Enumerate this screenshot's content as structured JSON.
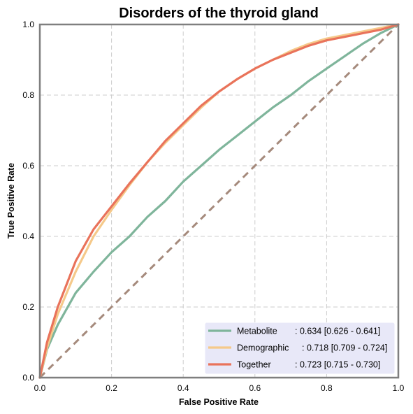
{
  "chart_data": {
    "type": "line",
    "title": "Disorders of the thyroid gland",
    "xlabel": "False Positive Rate",
    "ylabel": "True Positive Rate",
    "xlim": [
      0,
      1
    ],
    "ylim": [
      0,
      1
    ],
    "xticks": [
      "0.0",
      "0.2",
      "0.4",
      "0.6",
      "0.8",
      "1.0"
    ],
    "yticks": [
      "0.0",
      "0.2",
      "0.4",
      "0.6",
      "0.8",
      "1.0"
    ],
    "grid": true,
    "legend_position": "bottom-right",
    "series": [
      {
        "name": "Metabolite",
        "auc_label": ": 0.634 [0.626 - 0.641]",
        "color": "#7fb59b",
        "x": [
          0,
          0.02,
          0.05,
          0.1,
          0.15,
          0.2,
          0.25,
          0.3,
          0.35,
          0.4,
          0.45,
          0.5,
          0.55,
          0.6,
          0.65,
          0.7,
          0.75,
          0.8,
          0.85,
          0.9,
          0.95,
          1.0
        ],
        "y": [
          0,
          0.08,
          0.15,
          0.24,
          0.3,
          0.355,
          0.4,
          0.455,
          0.5,
          0.555,
          0.6,
          0.645,
          0.685,
          0.725,
          0.765,
          0.8,
          0.84,
          0.875,
          0.91,
          0.945,
          0.975,
          1.0
        ]
      },
      {
        "name": "Demographic",
        "auc_label": ": 0.718 [0.709 - 0.724]",
        "color": "#f5c98a",
        "x": [
          0,
          0.02,
          0.05,
          0.1,
          0.15,
          0.2,
          0.25,
          0.3,
          0.35,
          0.4,
          0.45,
          0.5,
          0.55,
          0.6,
          0.65,
          0.7,
          0.75,
          0.8,
          0.85,
          0.9,
          0.95,
          1.0
        ],
        "y": [
          0,
          0.085,
          0.18,
          0.3,
          0.4,
          0.475,
          0.545,
          0.61,
          0.665,
          0.715,
          0.765,
          0.81,
          0.845,
          0.875,
          0.9,
          0.925,
          0.945,
          0.96,
          0.97,
          0.98,
          0.99,
          1.0
        ]
      },
      {
        "name": "Together",
        "auc_label": ": 0.723 [0.715 - 0.730]",
        "color": "#e9735b",
        "x": [
          0,
          0.02,
          0.05,
          0.1,
          0.15,
          0.2,
          0.25,
          0.3,
          0.35,
          0.4,
          0.45,
          0.5,
          0.55,
          0.6,
          0.65,
          0.7,
          0.75,
          0.8,
          0.85,
          0.9,
          0.95,
          1.0
        ],
        "y": [
          0,
          0.1,
          0.2,
          0.33,
          0.42,
          0.485,
          0.55,
          0.61,
          0.67,
          0.72,
          0.77,
          0.81,
          0.845,
          0.875,
          0.9,
          0.92,
          0.94,
          0.955,
          0.965,
          0.975,
          0.985,
          1.0
        ]
      }
    ],
    "reference_line": {
      "x": [
        0,
        1
      ],
      "y": [
        0,
        1
      ],
      "color": "#a58a7c",
      "style": "dashed"
    }
  },
  "colors": {
    "frame": "#7f7f7f",
    "grid": "#cccccc",
    "legend_bg": "#e8e8f8"
  }
}
